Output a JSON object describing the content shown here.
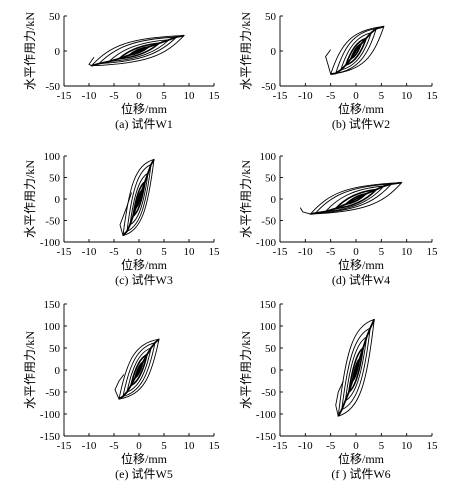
{
  "figure": {
    "y_axis_label": "水平作用力/kN",
    "x_axis_label": "位移/mm"
  },
  "chart_data": [
    {
      "type": "line",
      "caption": "(a) 试件W1",
      "xlabel": "位移/mm",
      "ylabel": "水平作用力/kN",
      "xlim": [
        -15,
        15
      ],
      "ylim": [
        -50,
        50
      ],
      "xticks": [
        -15,
        -10,
        -5,
        0,
        5,
        10,
        15
      ],
      "yticks": [
        -50,
        0,
        50
      ],
      "grid": false,
      "legend": "none",
      "series": [
        {
          "loops": [
            [
              2,
              6
            ],
            [
              4,
              11
            ],
            [
              6,
              16
            ],
            [
              7.5,
              20
            ],
            [
              9,
              22
            ]
          ],
          "neg": [
            [
              -2,
              -6
            ],
            [
              -4,
              -11
            ],
            [
              -6,
              -15
            ],
            [
              -8,
              -18
            ],
            [
              -9.5,
              -21
            ]
          ]
        }
      ],
      "tail": [
        [
          -9.5,
          -21
        ],
        [
          -10,
          -19
        ],
        [
          -9,
          -9
        ]
      ]
    },
    {
      "type": "line",
      "caption": "(b) 试件W2",
      "xlabel": "位移/mm",
      "ylabel": "水平作用力/kN",
      "xlim": [
        -15,
        15
      ],
      "ylim": [
        -50,
        50
      ],
      "xticks": [
        -15,
        -10,
        -5,
        0,
        5,
        10,
        15
      ],
      "yticks": [
        -50,
        0,
        50
      ],
      "grid": false,
      "legend": "none",
      "series": [
        {
          "loops": [
            [
              1,
              10
            ],
            [
              2,
              18
            ],
            [
              3,
              26
            ],
            [
              4,
              32
            ],
            [
              5.5,
              35
            ]
          ],
          "neg": [
            [
              -1,
              -11
            ],
            [
              -2,
              -20
            ],
            [
              -3,
              -27
            ],
            [
              -4,
              -32
            ],
            [
              -5,
              -33
            ]
          ]
        }
      ],
      "tail": [
        [
          -5,
          -33
        ],
        [
          -5.5,
          -20
        ],
        [
          -6,
          -8
        ],
        [
          -5,
          2
        ]
      ]
    },
    {
      "type": "line",
      "caption": "(c) 试件W3",
      "xlabel": "位移/mm",
      "ylabel": "水平作用力/kN",
      "xlim": [
        -15,
        15
      ],
      "ylim": [
        -100,
        100
      ],
      "xticks": [
        -15,
        -10,
        -5,
        0,
        5,
        10,
        15
      ],
      "yticks": [
        -100,
        -50,
        0,
        50,
        100
      ],
      "grid": false,
      "legend": "none",
      "series": [
        {
          "loops": [
            [
              0.6,
              20
            ],
            [
              1.2,
              40
            ],
            [
              1.8,
              60
            ],
            [
              2.4,
              80
            ],
            [
              3,
              92
            ]
          ],
          "neg": [
            [
              -0.6,
              -20
            ],
            [
              -1.2,
              -40
            ],
            [
              -1.8,
              -60
            ],
            [
              -2.4,
              -75
            ],
            [
              -3.2,
              -85
            ]
          ]
        }
      ],
      "tail": [
        [
          -3.2,
          -85
        ],
        [
          -3.8,
          -60
        ],
        [
          -2.5,
          -20
        ],
        [
          -1.5,
          15
        ]
      ]
    },
    {
      "type": "line",
      "caption": "(d) 试件W4",
      "xlabel": "位移/mm",
      "ylabel": "水平作用力/kN",
      "xlim": [
        -15,
        15
      ],
      "ylim": [
        -100,
        100
      ],
      "xticks": [
        -15,
        -10,
        -5,
        0,
        5,
        10,
        15
      ],
      "yticks": [
        -100,
        -50,
        0,
        50,
        100
      ],
      "grid": false,
      "legend": "none",
      "series": [
        {
          "loops": [
            [
              2,
              12
            ],
            [
              4,
              22
            ],
            [
              5.5,
              30
            ],
            [
              7,
              35
            ],
            [
              9,
              38
            ]
          ],
          "neg": [
            [
              -2,
              -12
            ],
            [
              -4,
              -22
            ],
            [
              -6,
              -29
            ],
            [
              -8,
              -33
            ],
            [
              -9,
              -35
            ]
          ]
        }
      ],
      "tail": [
        [
          -9,
          -35
        ],
        [
          -10.5,
          -30
        ],
        [
          -11,
          -20
        ]
      ]
    },
    {
      "type": "line",
      "caption": "(e) 试件W5",
      "xlabel": "位移/mm",
      "ylabel": "水平作用力/kN",
      "xlim": [
        -15,
        15
      ],
      "ylim": [
        -150,
        150
      ],
      "xticks": [
        -15,
        -10,
        -5,
        0,
        5,
        10,
        15
      ],
      "yticks": [
        -150,
        -100,
        -50,
        0,
        50,
        100,
        150
      ],
      "grid": false,
      "legend": "none",
      "series": [
        {
          "loops": [
            [
              0.8,
              18
            ],
            [
              1.6,
              35
            ],
            [
              2.4,
              50
            ],
            [
              3.2,
              62
            ],
            [
              4,
              70
            ]
          ],
          "neg": [
            [
              -0.8,
              -18
            ],
            [
              -1.6,
              -35
            ],
            [
              -2.4,
              -50
            ],
            [
              -3.2,
              -60
            ],
            [
              -4,
              -66
            ]
          ]
        }
      ],
      "tail": [
        [
          -4,
          -66
        ],
        [
          -4.8,
          -45
        ],
        [
          -4,
          -25
        ],
        [
          -3,
          -10
        ]
      ]
    },
    {
      "type": "line",
      "caption": "(f ) 试件W6",
      "xlabel": "位移/mm",
      "ylabel": "水平作用力/kN",
      "xlim": [
        -15,
        15
      ],
      "ylim": [
        -150,
        150
      ],
      "xticks": [
        -15,
        -10,
        -5,
        0,
        5,
        10,
        15
      ],
      "yticks": [
        -150,
        -100,
        -50,
        0,
        50,
        100,
        150
      ],
      "grid": false,
      "legend": "none",
      "series": [
        {
          "loops": [
            [
              0.7,
              25
            ],
            [
              1.4,
              50
            ],
            [
              2.1,
              75
            ],
            [
              2.8,
              95
            ],
            [
              3.6,
              115
            ]
          ],
          "neg": [
            [
              -0.7,
              -25
            ],
            [
              -1.4,
              -50
            ],
            [
              -2.1,
              -70
            ],
            [
              -2.8,
              -90
            ],
            [
              -3.5,
              -105
            ]
          ]
        }
      ],
      "tail": [
        [
          -3.5,
          -105
        ],
        [
          -4,
          -80
        ],
        [
          -3.5,
          -50
        ],
        [
          -2.5,
          -25
        ]
      ]
    }
  ]
}
